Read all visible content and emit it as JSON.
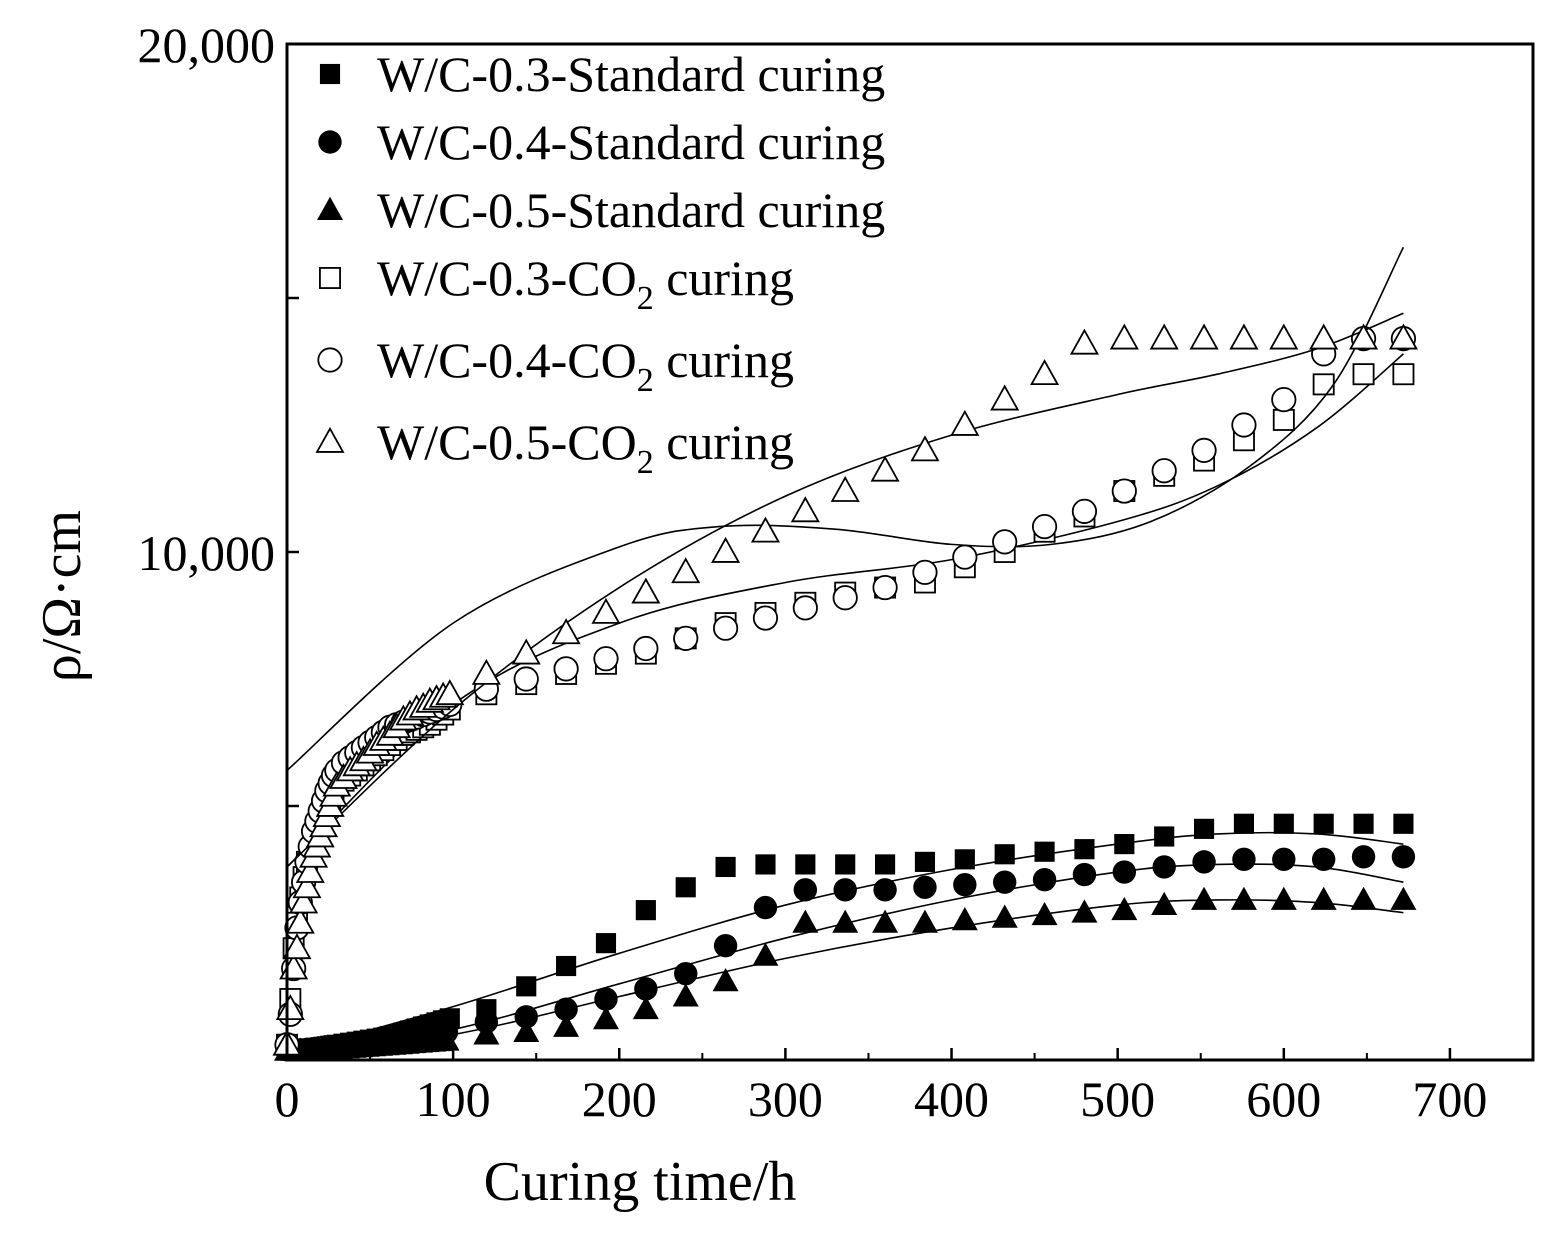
{
  "chart_data": {
    "type": "scatter",
    "title": "",
    "xlabel": "Curing time/h",
    "ylabel": "ρ/Ω·cm",
    "xlim": [
      0,
      750
    ],
    "ylim": [
      0,
      20000
    ],
    "xticks": [
      0,
      100,
      200,
      300,
      400,
      500,
      600,
      700
    ],
    "xtick_labels": [
      "0",
      "100",
      "200",
      "300",
      "400",
      "500",
      "600",
      "700"
    ],
    "yticks": [
      10000,
      20000
    ],
    "ytick_labels": [
      "10,000",
      "20,000"
    ],
    "legend_position": "top-left",
    "series": [
      {
        "name": "W/C-0.3-Standard curing",
        "label_main": "W/C-0.3-Standard curing",
        "label_sub": "",
        "label_tail": "",
        "marker": "square",
        "filled": true,
        "x": [
          0,
          2,
          4,
          6,
          8,
          10,
          12,
          14,
          16,
          18,
          20,
          22,
          24,
          26,
          28,
          30,
          34,
          38,
          42,
          46,
          50,
          54,
          58,
          62,
          66,
          70,
          74,
          78,
          82,
          86,
          90,
          94,
          98,
          120,
          144,
          168,
          192,
          216,
          240,
          264,
          288,
          312,
          336,
          360,
          384,
          408,
          432,
          456,
          480,
          504,
          528,
          552,
          576,
          600,
          624,
          648,
          672
        ],
        "y": [
          200,
          200,
          200,
          205,
          210,
          215,
          220,
          225,
          230,
          240,
          250,
          260,
          270,
          280,
          290,
          300,
          320,
          340,
          360,
          380,
          400,
          420,
          440,
          470,
          500,
          540,
          580,
          620,
          660,
          700,
          740,
          780,
          820,
          1000,
          1450,
          1850,
          2300,
          2950,
          3400,
          3800,
          3850,
          3850,
          3850,
          3850,
          3900,
          3950,
          4050,
          4100,
          4150,
          4250,
          4400,
          4550,
          4650,
          4650,
          4650,
          4650,
          4650
        ],
        "fit": [
          [
            0,
            150
          ],
          [
            100,
            1050
          ],
          [
            200,
            2100
          ],
          [
            300,
            3050
          ],
          [
            400,
            3750
          ],
          [
            500,
            4250
          ],
          [
            560,
            4450
          ],
          [
            620,
            4450
          ],
          [
            672,
            4250
          ]
        ]
      },
      {
        "name": "W/C-0.4-Standard curing",
        "label_main": "W/C-0.4-Standard curing",
        "label_sub": "",
        "label_tail": "",
        "marker": "circle",
        "filled": true,
        "x": [
          0,
          4,
          8,
          12,
          16,
          20,
          24,
          28,
          32,
          36,
          40,
          44,
          48,
          52,
          56,
          60,
          64,
          68,
          72,
          76,
          80,
          84,
          88,
          92,
          96,
          120,
          144,
          168,
          192,
          216,
          240,
          264,
          288,
          312,
          336,
          360,
          384,
          408,
          432,
          456,
          480,
          504,
          528,
          552,
          576,
          600,
          624,
          648,
          672
        ],
        "y": [
          200,
          200,
          200,
          210,
          220,
          230,
          240,
          250,
          260,
          270,
          280,
          290,
          300,
          320,
          340,
          360,
          380,
          400,
          420,
          440,
          460,
          480,
          500,
          520,
          550,
          750,
          850,
          1000,
          1200,
          1400,
          1700,
          2250,
          3000,
          3350,
          3350,
          3350,
          3400,
          3450,
          3500,
          3550,
          3650,
          3700,
          3800,
          3900,
          3950,
          3950,
          3950,
          4000,
          4000
        ],
        "fit": [
          [
            0,
            50
          ],
          [
            100,
            600
          ],
          [
            200,
            1500
          ],
          [
            300,
            2400
          ],
          [
            400,
            3150
          ],
          [
            500,
            3700
          ],
          [
            560,
            3850
          ],
          [
            620,
            3800
          ],
          [
            672,
            3500
          ]
        ]
      },
      {
        "name": "W/C-0.5-Standard curing",
        "label_main": "W/C-0.5-Standard curing",
        "label_sub": "",
        "label_tail": "",
        "marker": "triangle",
        "filled": true,
        "x": [
          0,
          4,
          8,
          12,
          16,
          20,
          24,
          28,
          32,
          36,
          40,
          44,
          48,
          52,
          56,
          60,
          64,
          68,
          72,
          76,
          80,
          84,
          88,
          92,
          96,
          120,
          144,
          168,
          192,
          216,
          240,
          264,
          288,
          312,
          336,
          360,
          384,
          408,
          432,
          456,
          480,
          504,
          528,
          552,
          576,
          600,
          624,
          648,
          672
        ],
        "y": [
          180,
          180,
          180,
          185,
          190,
          195,
          200,
          210,
          220,
          230,
          240,
          250,
          260,
          270,
          280,
          290,
          300,
          310,
          320,
          330,
          340,
          350,
          360,
          370,
          380,
          500,
          550,
          650,
          800,
          1000,
          1250,
          1550,
          2050,
          2700,
          2700,
          2700,
          2700,
          2750,
          2800,
          2850,
          2900,
          2950,
          3050,
          3150,
          3150,
          3150,
          3150,
          3150,
          3150
        ],
        "fit": [
          [
            0,
            50
          ],
          [
            100,
            500
          ],
          [
            200,
            1250
          ],
          [
            300,
            2000
          ],
          [
            400,
            2600
          ],
          [
            500,
            3050
          ],
          [
            560,
            3150
          ],
          [
            620,
            3100
          ],
          [
            672,
            2900
          ]
        ]
      },
      {
        "name": "W/C-0.3-CO2 curing",
        "label_main": "W/C-0.3-CO",
        "label_sub": "2",
        "label_tail": " curing",
        "marker": "square",
        "filled": false,
        "x": [
          0,
          2,
          4,
          6,
          8,
          10,
          12,
          14,
          16,
          18,
          20,
          22,
          24,
          26,
          28,
          30,
          34,
          38,
          42,
          46,
          50,
          54,
          58,
          62,
          66,
          70,
          74,
          78,
          82,
          86,
          90,
          94,
          98,
          120,
          144,
          168,
          192,
          216,
          240,
          264,
          288,
          312,
          336,
          360,
          384,
          408,
          432,
          456,
          480,
          504,
          528,
          552,
          576,
          600,
          624,
          648,
          672
        ],
        "y": [
          300,
          1200,
          2200,
          2700,
          3200,
          3600,
          3900,
          4100,
          4300,
          4450,
          4600,
          4800,
          5000,
          5150,
          5300,
          5400,
          5500,
          5600,
          5700,
          5800,
          5900,
          6000,
          6100,
          6200,
          6300,
          6400,
          6450,
          6500,
          6550,
          6600,
          6700,
          6800,
          6900,
          7200,
          7400,
          7600,
          7800,
          8000,
          8300,
          8600,
          8800,
          9000,
          9200,
          9300,
          9400,
          9700,
          10000,
          10400,
          10700,
          11200,
          11500,
          11800,
          12200,
          12600,
          13300,
          13500,
          13500
        ],
        "fit": [
          [
            0,
            3800
          ],
          [
            100,
            7000
          ],
          [
            200,
            8600
          ],
          [
            300,
            9400
          ],
          [
            400,
            9850
          ],
          [
            500,
            10600
          ],
          [
            560,
            11300
          ],
          [
            620,
            12450
          ],
          [
            672,
            13900
          ]
        ]
      },
      {
        "name": "W/C-0.4-CO2 curing",
        "label_main": "W/C-0.4-CO",
        "label_sub": "2",
        "label_tail": " curing",
        "marker": "circle",
        "filled": false,
        "x": [
          0,
          2,
          4,
          6,
          8,
          10,
          12,
          14,
          16,
          18,
          20,
          22,
          24,
          26,
          28,
          30,
          34,
          38,
          42,
          46,
          50,
          54,
          58,
          62,
          66,
          70,
          74,
          78,
          82,
          86,
          90,
          94,
          98,
          120,
          144,
          168,
          192,
          216,
          240,
          264,
          288,
          312,
          336,
          360,
          384,
          408,
          432,
          456,
          480,
          504,
          528,
          552,
          576,
          600,
          624,
          648,
          672
        ],
        "y": [
          300,
          900,
          1800,
          2600,
          3100,
          3500,
          3900,
          4200,
          4500,
          4700,
          4900,
          5100,
          5300,
          5450,
          5600,
          5700,
          5850,
          5950,
          6050,
          6150,
          6250,
          6350,
          6450,
          6550,
          6600,
          6650,
          6700,
          6750,
          6800,
          6850,
          6900,
          6950,
          7000,
          7300,
          7500,
          7700,
          7900,
          8100,
          8300,
          8500,
          8700,
          8900,
          9100,
          9300,
          9600,
          9900,
          10200,
          10500,
          10800,
          11200,
          11600,
          12000,
          12500,
          13000,
          13900,
          14200,
          14200
        ],
        "fit": [
          [
            0,
            5700
          ],
          [
            100,
            8600
          ],
          [
            200,
            10100
          ],
          [
            260,
            10500
          ],
          [
            330,
            10450
          ],
          [
            400,
            10150
          ],
          [
            460,
            10150
          ],
          [
            520,
            10600
          ],
          [
            580,
            11700
          ],
          [
            630,
            13300
          ],
          [
            672,
            16000
          ]
        ]
      },
      {
        "name": "W/C-0.5-CO2 curing",
        "label_main": "W/C-0.5-CO",
        "label_sub": "2",
        "label_tail": " curing",
        "marker": "triangle",
        "filled": false,
        "x": [
          0,
          2,
          4,
          6,
          8,
          10,
          12,
          14,
          16,
          18,
          20,
          22,
          24,
          26,
          28,
          30,
          34,
          38,
          42,
          46,
          50,
          54,
          58,
          62,
          66,
          70,
          74,
          78,
          82,
          86,
          90,
          94,
          98,
          120,
          144,
          168,
          192,
          216,
          240,
          264,
          288,
          312,
          336,
          360,
          384,
          408,
          432,
          456,
          480,
          504,
          528,
          552,
          576,
          600,
          624,
          648,
          672
        ],
        "y": [
          300,
          1000,
          1800,
          2200,
          2700,
          3100,
          3400,
          3700,
          4000,
          4200,
          4400,
          4600,
          4800,
          5000,
          5200,
          5400,
          5550,
          5700,
          5800,
          5900,
          6050,
          6200,
          6300,
          6400,
          6550,
          6700,
          6800,
          6900,
          6950,
          7050,
          7100,
          7150,
          7200,
          7600,
          8000,
          8400,
          8800,
          9200,
          9600,
          10000,
          10400,
          10800,
          11200,
          11600,
          12000,
          12500,
          13000,
          13500,
          14100,
          14200,
          14200,
          14200,
          14200,
          14200,
          14200,
          14200,
          14200
        ],
        "fit": [
          [
            0,
            3800
          ],
          [
            100,
            6900
          ],
          [
            200,
            9300
          ],
          [
            300,
            11100
          ],
          [
            400,
            12300
          ],
          [
            500,
            13100
          ],
          [
            560,
            13500
          ],
          [
            620,
            14000
          ],
          [
            672,
            14700
          ]
        ]
      }
    ]
  }
}
